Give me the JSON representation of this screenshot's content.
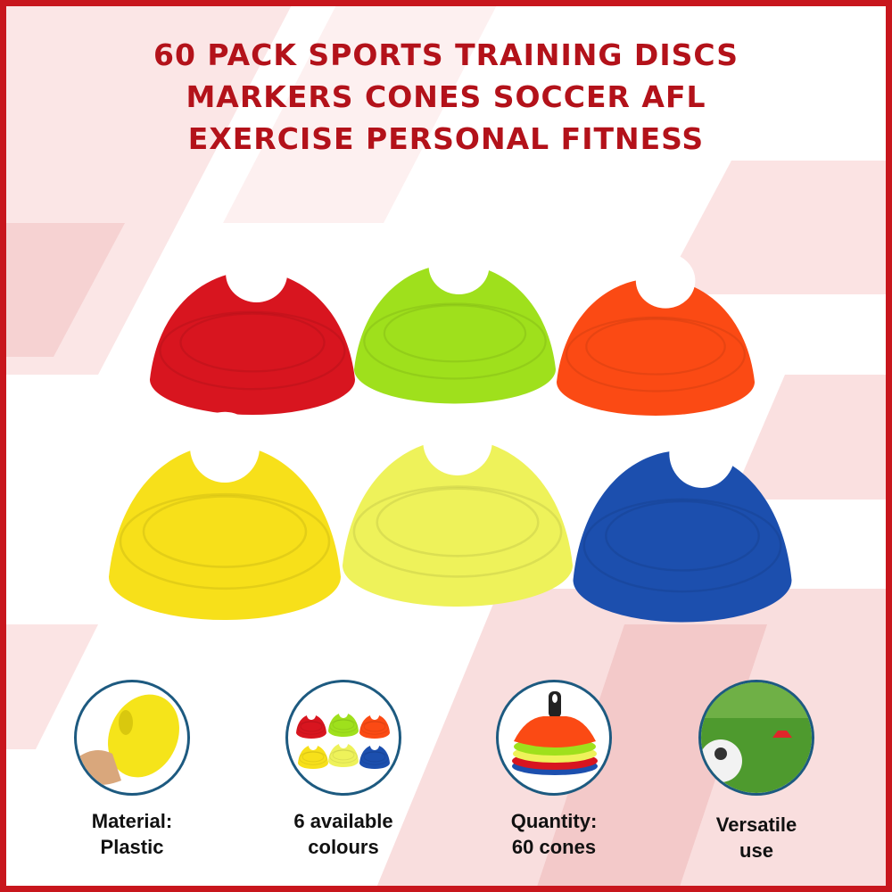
{
  "title_lines": [
    "60 PACK SPORTS TRAINING DISCS",
    "MARKERS CONES SOCCER AFL",
    "EXERCISE PERSONAL FITNESS"
  ],
  "colors": {
    "border": "#c8161d",
    "title": "#b3121a",
    "circle_border": "#1d5a80"
  },
  "cones": [
    {
      "name": "red",
      "color": "#d8151f"
    },
    {
      "name": "green",
      "color": "#9fe01c"
    },
    {
      "name": "orange",
      "color": "#fb4a14"
    },
    {
      "name": "yellow",
      "color": "#f7e01a"
    },
    {
      "name": "pale-yellow",
      "color": "#eef25a"
    },
    {
      "name": "blue",
      "color": "#1c4fae"
    }
  ],
  "features": [
    {
      "icon": "hand-holding-cone-icon",
      "line1": "Material:",
      "line2": "Plastic"
    },
    {
      "icon": "six-cones-icon",
      "line1": "6 available",
      "line2": "colours"
    },
    {
      "icon": "cone-stack-icon",
      "line1": "Quantity:",
      "line2": "60 cones"
    },
    {
      "icon": "soccer-field-icon",
      "line1": "Versatile",
      "line2": "use"
    }
  ]
}
